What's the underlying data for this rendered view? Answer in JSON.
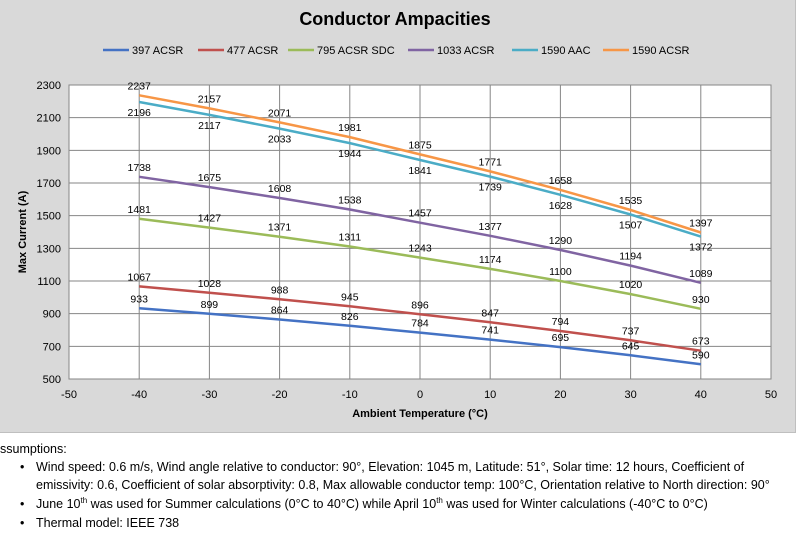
{
  "chart_data": {
    "type": "line",
    "title": "Conductor Ampacities",
    "xlabel": "Ambient Temperature (°C)",
    "ylabel": "Max Current (A)",
    "xlim": [
      -50,
      50
    ],
    "ylim": [
      500,
      2300
    ],
    "x_ticks": [
      -50,
      -40,
      -30,
      -20,
      -10,
      0,
      10,
      20,
      30,
      40,
      50
    ],
    "y_ticks": [
      500,
      700,
      900,
      1100,
      1300,
      1500,
      1700,
      1900,
      2100,
      2300
    ],
    "grid": "horizontal and vertical",
    "legend_position": "top",
    "x": [
      -40,
      -30,
      -20,
      -10,
      0,
      10,
      20,
      30,
      40
    ],
    "series": [
      {
        "name": "397 ACSR",
        "color": "#4472c4",
        "values": [
          933,
          899,
          864,
          826,
          784,
          741,
          695,
          645,
          590
        ]
      },
      {
        "name": "477 ACSR",
        "color": "#c0504d",
        "values": [
          1067,
          1028,
          988,
          945,
          896,
          847,
          794,
          737,
          673
        ]
      },
      {
        "name": "795 ACSR SDC",
        "color": "#9bbb59",
        "values": [
          1481,
          1427,
          1371,
          1311,
          1243,
          1174,
          1100,
          1020,
          930
        ]
      },
      {
        "name": "1033 ACSR",
        "color": "#8064a2",
        "values": [
          1738,
          1675,
          1608,
          1538,
          1457,
          1377,
          1290,
          1194,
          1089
        ]
      },
      {
        "name": "1590 AAC",
        "color": "#4bacc6",
        "values": [
          2196,
          2117,
          2033,
          1944,
          1841,
          1739,
          1628,
          1507,
          1372
        ]
      },
      {
        "name": "1590 ACSR",
        "color": "#f79646",
        "values": [
          2237,
          2157,
          2071,
          1981,
          1875,
          1771,
          1658,
          1535,
          1397
        ]
      }
    ]
  },
  "notes": {
    "heading": "ssumptions:",
    "items": [
      {
        "text": "Wind speed: 0.6 m/s, Wind angle relative to conductor: 90°, Elevation: 1045 m, Latitude: 51°, Solar time: 12 hours, Coefficient of emissivity: 0.6, Coefficient of solar absorptivity: 0.8, Max allowable conductor temp: 100°C, Orientation relative to North direction: 90°"
      },
      {
        "pre1": "June 10",
        "sup1": "th",
        "mid": " was used for Summer calculations (0°C to 40°C) while April 10",
        "sup2": "th",
        "post": " was used for Winter calculations (-40°C to 0°C)"
      },
      {
        "text": "Thermal model: IEEE 738"
      }
    ]
  }
}
